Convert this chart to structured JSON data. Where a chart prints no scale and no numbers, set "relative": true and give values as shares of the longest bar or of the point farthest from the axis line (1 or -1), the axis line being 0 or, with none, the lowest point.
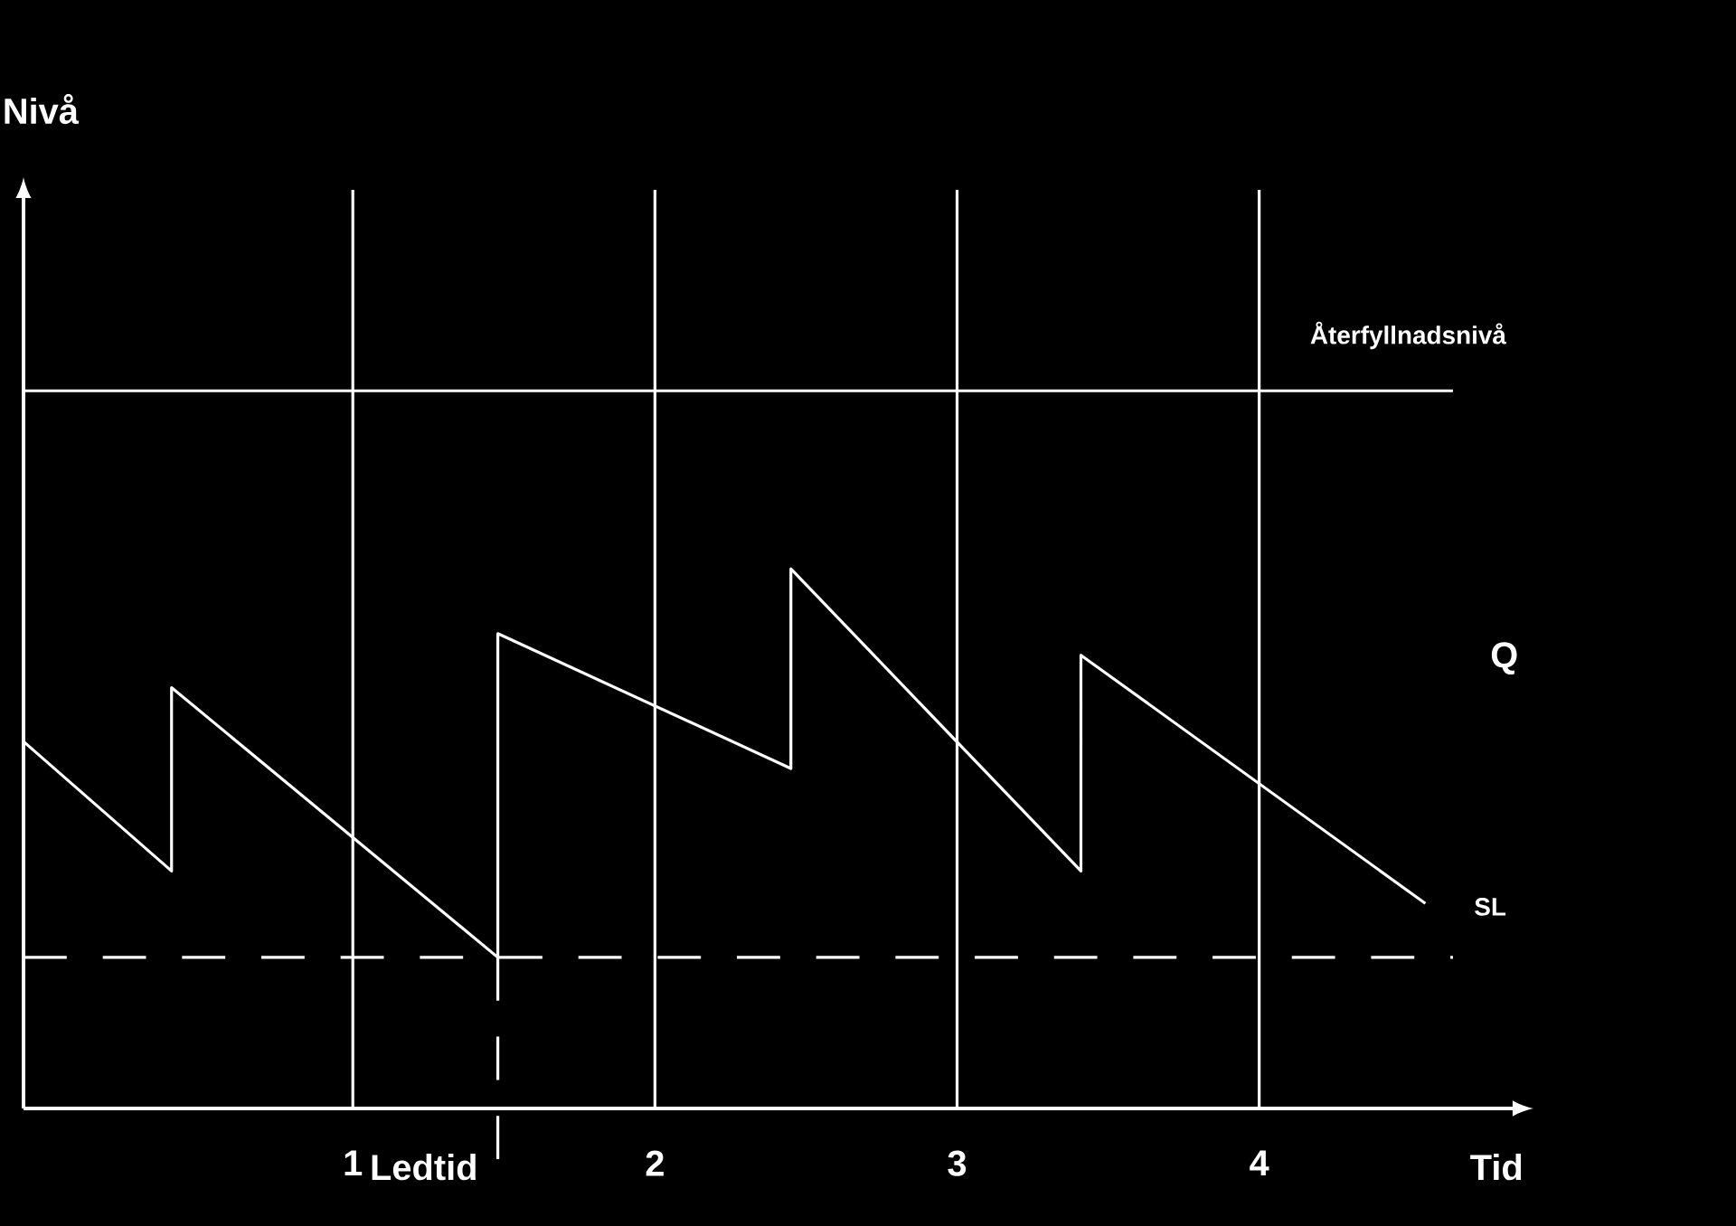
{
  "chart_data": {
    "type": "line",
    "relative": true,
    "xlabel": "Tid",
    "x": [
      -0.09,
      0.4,
      0.4,
      1.48,
      1.48,
      2.45,
      2.45,
      3.41,
      3.41,
      4.55
    ],
    "series": [
      {
        "color": "#ffffff",
        "values": [
          0.68,
          0.44,
          0.78,
          0.28,
          0.88,
          0.63,
          1,
          0.44,
          0.84,
          0.38
        ]
      }
    ],
    "xlim": [
      -0.09,
      4.86
    ],
    "xticks": [
      1,
      2,
      3,
      4
    ],
    "grid": "x",
    "marker": "none",
    "line_style": "solid",
    "ref_lines": [
      {
        "axis": "y",
        "value": 1.33,
        "label": "Återfyllnadsnivå",
        "color": "#ffffff",
        "line_style": "solid"
      },
      {
        "axis": "y",
        "value": 0.28,
        "label": "SL",
        "color": "#ffffff",
        "line_style": "dashed"
      },
      {
        "axis": "x",
        "value": 1.48,
        "label": "Ledtid",
        "color": "#ffffff",
        "line_style": "dashed"
      }
    ],
    "annotations": [
      "Q",
      "Nivå"
    ]
  }
}
